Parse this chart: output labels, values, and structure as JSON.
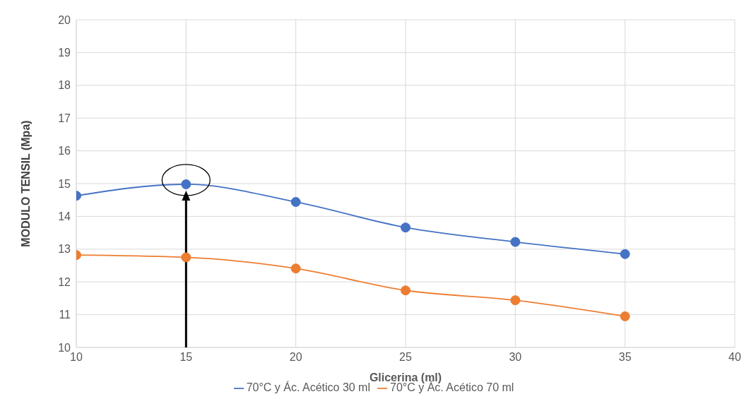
{
  "chart_data": {
    "type": "line",
    "xlabel": "Glicerina (ml)",
    "ylabel": "MODULO TENSIL (Mpa)",
    "x": [
      10,
      15,
      20,
      25,
      30,
      35
    ],
    "series": [
      {
        "name": "70°C y Ác. Acético 30 ml",
        "color": "#4472c4",
        "values": [
          14.63,
          14.98,
          14.44,
          13.66,
          13.22,
          12.85
        ]
      },
      {
        "name": "70°C y Ác. Acético 70 ml",
        "color": "#ed7d31",
        "values": [
          12.82,
          12.75,
          12.41,
          11.74,
          11.44,
          10.95
        ]
      }
    ],
    "xlim": [
      10,
      40
    ],
    "xticks": [
      10,
      15,
      20,
      25,
      30,
      35,
      40
    ],
    "ylim": [
      10,
      20
    ],
    "yticks": [
      10,
      11,
      12,
      13,
      14,
      15,
      16,
      17,
      18,
      19,
      20
    ],
    "grid": true,
    "legend": "bottom",
    "marker": "circle",
    "line_style": "solid"
  }
}
